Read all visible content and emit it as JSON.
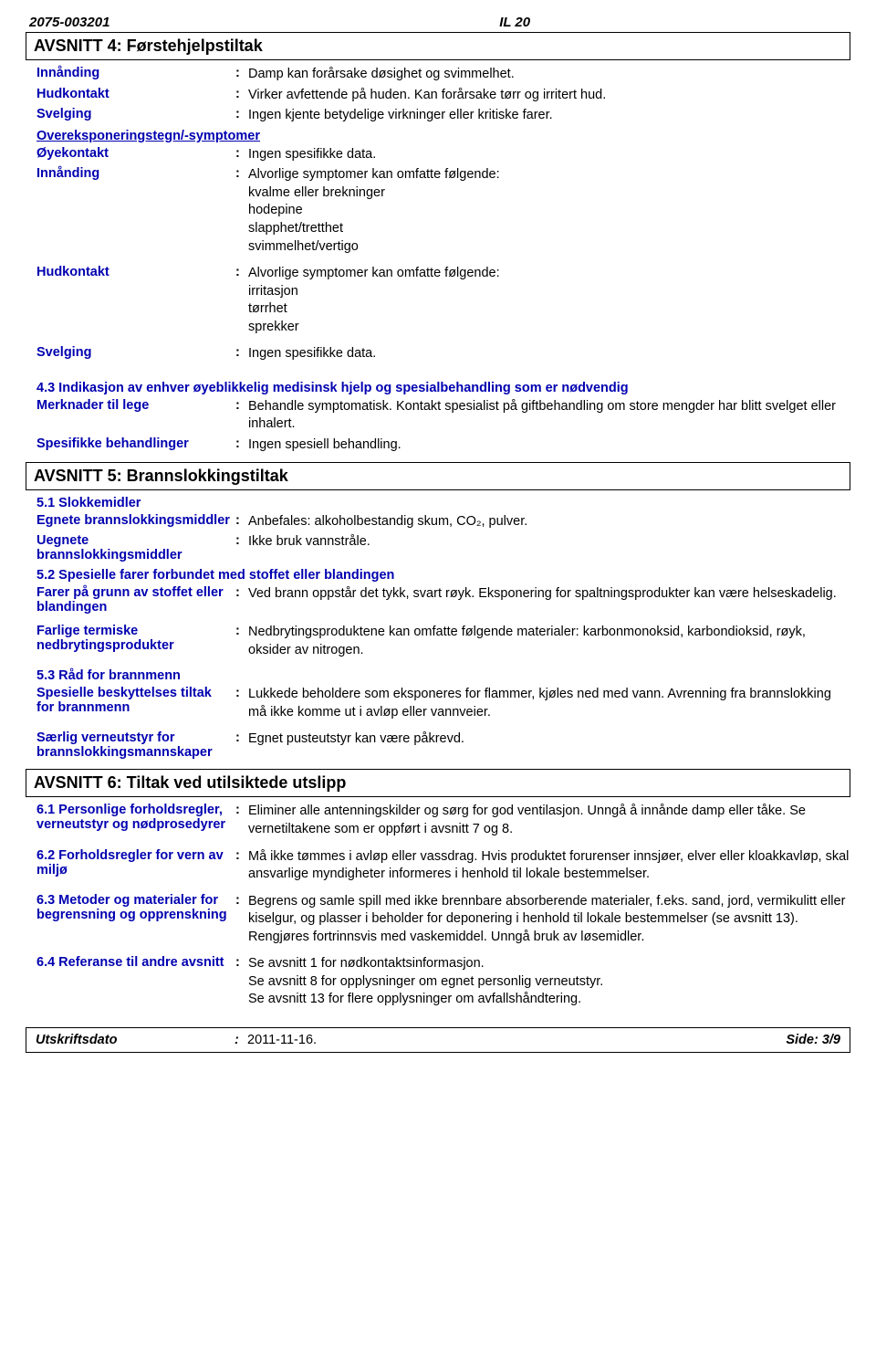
{
  "header": {
    "doc_id": "2075-003201",
    "code": "IL 20"
  },
  "s4": {
    "title": "AVSNITT 4: Førstehjelpstiltak",
    "rows1": [
      {
        "label": "Innånding",
        "value": "Damp kan forårsake døsighet og svimmelhet."
      },
      {
        "label": "Hudkontakt",
        "value": "Virker avfettende på huden. Kan forårsake tørr og irritert hud."
      },
      {
        "label": "Svelging",
        "value": "Ingen kjente betydelige virkninger eller kritiske farer."
      }
    ],
    "sub1": "Overeksponeringstegn/-symptomer",
    "rows2": [
      {
        "label": "Øyekontakt",
        "value": "Ingen spesifikke data."
      },
      {
        "label": "Innånding",
        "value": "Alvorlige symptomer kan omfatte følgende:\nkvalme eller brekninger\nhodepine\nslapphet/tretthet\nsvimmelhet/vertigo"
      },
      {
        "label": "Hudkontakt",
        "value": "Alvorlige symptomer kan omfatte følgende:\nirritasjon\ntørrhet\nsprekker"
      },
      {
        "label": "Svelging",
        "value": "Ingen spesifikke data."
      }
    ],
    "sub2": "4.3 Indikasjon av enhver øyeblikkelig medisinsk hjelp og spesialbehandling som er nødvendig",
    "rows3": [
      {
        "label": "Merknader til lege",
        "value": "Behandle symptomatisk. Kontakt spesialist på giftbehandling om store mengder har blitt svelget eller inhalert."
      },
      {
        "label": "Spesifikke behandlinger",
        "value": "Ingen spesiell behandling."
      }
    ]
  },
  "s5": {
    "title": "AVSNITT 5: Brannslokkingstiltak",
    "sub1": "5.1 Slokkemidler",
    "rows1": [
      {
        "label": "Egnete brannslokkingsmiddler",
        "value": "Anbefales: alkoholbestandig skum, CO₂, pulver."
      },
      {
        "label": "Uegnete brannslokkingsmiddler",
        "value": "Ikke bruk vannstråle."
      }
    ],
    "sub2": "5.2 Spesielle farer forbundet med stoffet eller blandingen",
    "rows2": [
      {
        "label": "Farer på grunn av stoffet eller blandingen",
        "value": "Ved brann oppstår det tykk, svart røyk. Eksponering for spaltningsprodukter kan være helseskadelig."
      },
      {
        "label": "Farlige termiske nedbrytingsprodukter",
        "value": "Nedbrytingsproduktene kan omfatte følgende materialer: karbonmonoksid, karbondioksid, røyk, oksider av nitrogen."
      }
    ],
    "sub3": "5.3 Råd for brannmenn",
    "rows3": [
      {
        "label": "Spesielle beskyttelses tiltak for brannmenn",
        "value": "Lukkede beholdere som eksponeres for flammer, kjøles ned med vann. Avrenning fra brannslokking må ikke komme ut i avløp eller vannveier."
      },
      {
        "label": "Særlig verneutstyr for brannslokkingsmannskaper",
        "value": "Egnet pusteutstyr kan være påkrevd."
      }
    ]
  },
  "s6": {
    "title": "AVSNITT 6: Tiltak ved utilsiktede utslipp",
    "rows": [
      {
        "label": "6.1 Personlige forholdsregler, verneutstyr og nødprosedyrer",
        "value": "Eliminer alle antenningskilder og sørg for god ventilasjon. Unngå å innånde damp eller tåke. Se vernetiltakene som er oppført i avsnitt 7 og 8."
      },
      {
        "label": "6.2 Forholdsregler for vern av miljø",
        "value": "Må ikke tømmes i avløp eller vassdrag. Hvis produktet forurenser innsjøer, elver eller kloakkavløp, skal ansvarlige myndigheter informeres i henhold til lokale bestemmelser."
      },
      {
        "label": "6.3 Metoder og materialer for begrensning og opprenskning",
        "value": "Begrens og samle spill med ikke brennbare absorberende materialer, f.eks. sand, jord, vermikulitt eller kiselgur, og plasser i beholder for deponering i henhold til lokale bestemmelser (se avsnitt 13). Rengjøres fortrinnsvis med vaskemiddel. Unngå bruk av løsemidler."
      },
      {
        "label": "6.4 Referanse til andre avsnitt",
        "value": "Se avsnitt 1 for nødkontaktsinformasjon.\nSe avsnitt 8 for opplysninger om egnet personlig verneutstyr.\nSe avsnitt 13 for flere opplysninger om avfallshåndtering."
      }
    ]
  },
  "footer": {
    "date_label": "Utskriftsdato",
    "date_value": "2011-11-16.",
    "page": "Side: 3/9"
  }
}
